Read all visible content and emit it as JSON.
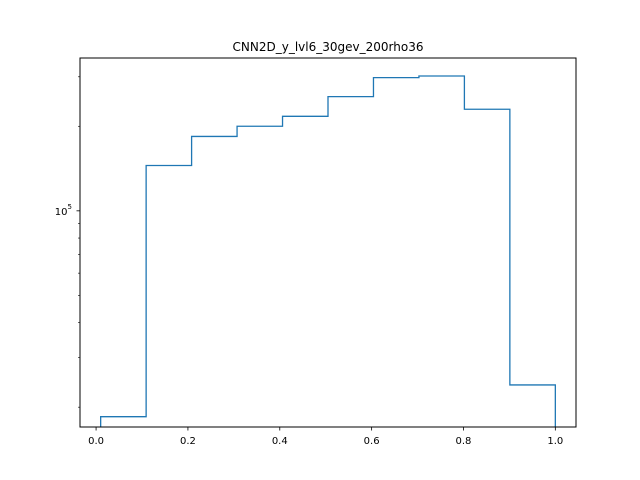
{
  "chart_data": {
    "type": "histogram",
    "title": "CNN2D_y_lvl6_30gev_200rho36",
    "xlabel": "",
    "ylabel": "",
    "y_scale": "log",
    "xlim": [
      -0.035,
      1.045
    ],
    "ylim": [
      17000,
      350000
    ],
    "x_ticks": [
      0.0,
      0.2,
      0.4,
      0.6,
      0.8,
      1.0
    ],
    "x_tick_labels": [
      "0.0",
      "0.2",
      "0.4",
      "0.6",
      "0.8",
      "1.0"
    ],
    "y_major_ticks": [
      100000
    ],
    "y_tick_labels": [
      {
        "base": "10",
        "exp": "5"
      }
    ],
    "y_minor_ticks": [
      20000,
      30000,
      40000,
      50000,
      60000,
      70000,
      80000,
      90000,
      200000,
      300000
    ],
    "bin_edges": [
      0.01,
      0.109,
      0.208,
      0.307,
      0.406,
      0.505,
      0.604,
      0.703,
      0.802,
      0.901,
      1.0
    ],
    "counts": [
      18500,
      145000,
      184000,
      200000,
      217000,
      255000,
      298000,
      302000,
      230000,
      24000
    ],
    "color": "#1f77b4",
    "grid": false,
    "legend": "none"
  }
}
